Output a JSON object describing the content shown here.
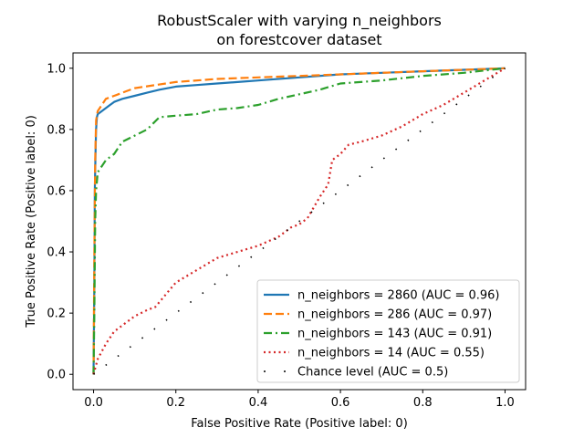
{
  "chart_data": {
    "type": "line",
    "title_lines": [
      "RobustScaler with varying n_neighbors",
      "on forestcover dataset"
    ],
    "xlabel": "False Positive Rate (Positive label: 0)",
    "ylabel": "True Positive Rate (Positive label: 0)",
    "xlim": [
      -0.05,
      1.05
    ],
    "ylim": [
      -0.05,
      1.05
    ],
    "xticks": [
      0.0,
      0.2,
      0.4,
      0.6,
      0.8,
      1.0
    ],
    "yticks": [
      0.0,
      0.2,
      0.4,
      0.6,
      0.8,
      1.0
    ],
    "tick_labels": [
      "0.0",
      "0.2",
      "0.4",
      "0.6",
      "0.8",
      "1.0"
    ],
    "grid": false,
    "legend_position": "lower-right",
    "series": [
      {
        "name": "n_neighbors = 2860 (AUC = 0.96)",
        "color": "#1f77b4",
        "style": "solid",
        "x": [
          0.0,
          0.002,
          0.003,
          0.005,
          0.006,
          0.008,
          0.01,
          0.02,
          0.03,
          0.04,
          0.05,
          0.07,
          0.1,
          0.13,
          0.16,
          0.2,
          0.25,
          0.3,
          0.35,
          0.4,
          0.5,
          0.6,
          0.7,
          0.8,
          0.9,
          1.0
        ],
        "y": [
          0.0,
          0.3,
          0.6,
          0.74,
          0.8,
          0.84,
          0.85,
          0.86,
          0.87,
          0.88,
          0.89,
          0.9,
          0.91,
          0.92,
          0.93,
          0.94,
          0.945,
          0.95,
          0.955,
          0.96,
          0.97,
          0.98,
          0.985,
          0.99,
          0.995,
          1.0
        ]
      },
      {
        "name": "n_neighbors = 286 (AUC = 0.97)",
        "color": "#ff7f0e",
        "style": "dashed",
        "x": [
          0.0,
          0.002,
          0.004,
          0.006,
          0.01,
          0.02,
          0.03,
          0.05,
          0.08,
          0.1,
          0.15,
          0.2,
          0.3,
          0.4,
          0.5,
          0.6,
          0.7,
          0.8,
          0.9,
          1.0
        ],
        "y": [
          0.0,
          0.4,
          0.7,
          0.83,
          0.86,
          0.88,
          0.9,
          0.91,
          0.925,
          0.935,
          0.945,
          0.955,
          0.965,
          0.97,
          0.975,
          0.98,
          0.985,
          0.99,
          0.995,
          1.0
        ]
      },
      {
        "name": "n_neighbors = 143 (AUC = 0.91)",
        "color": "#2ca02c",
        "style": "dashdot",
        "x": [
          0.0,
          0.002,
          0.004,
          0.006,
          0.01,
          0.02,
          0.03,
          0.05,
          0.07,
          0.1,
          0.13,
          0.16,
          0.2,
          0.25,
          0.3,
          0.35,
          0.4,
          0.45,
          0.5,
          0.55,
          0.6,
          0.7,
          0.8,
          0.9,
          1.0
        ],
        "y": [
          0.0,
          0.2,
          0.5,
          0.6,
          0.66,
          0.68,
          0.7,
          0.72,
          0.76,
          0.78,
          0.8,
          0.84,
          0.845,
          0.85,
          0.865,
          0.87,
          0.88,
          0.9,
          0.915,
          0.93,
          0.95,
          0.96,
          0.975,
          0.985,
          1.0
        ]
      },
      {
        "name": "n_neighbors = 14 (AUC = 0.55)",
        "color": "#d62728",
        "style": "dotted",
        "x": [
          0.0,
          0.01,
          0.03,
          0.05,
          0.08,
          0.1,
          0.13,
          0.15,
          0.2,
          0.25,
          0.3,
          0.35,
          0.4,
          0.45,
          0.48,
          0.5,
          0.52,
          0.55,
          0.57,
          0.58,
          0.6,
          0.62,
          0.65,
          0.7,
          0.75,
          0.8,
          0.85,
          0.9,
          0.95,
          1.0
        ],
        "y": [
          0.0,
          0.05,
          0.1,
          0.14,
          0.17,
          0.19,
          0.21,
          0.22,
          0.3,
          0.34,
          0.38,
          0.4,
          0.42,
          0.45,
          0.48,
          0.49,
          0.51,
          0.58,
          0.62,
          0.7,
          0.72,
          0.75,
          0.76,
          0.78,
          0.81,
          0.85,
          0.88,
          0.92,
          0.96,
          1.0
        ]
      },
      {
        "name": "Chance level (AUC = 0.5)",
        "color": "#000000",
        "style": "chance",
        "x": [
          0.0,
          1.0
        ],
        "y": [
          0.0,
          1.0
        ]
      }
    ]
  }
}
